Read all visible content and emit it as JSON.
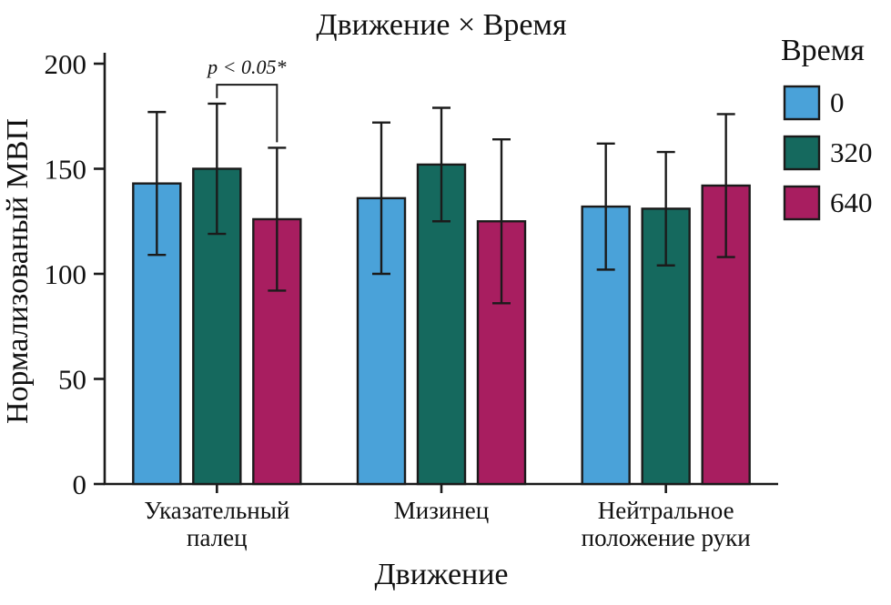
{
  "chart_data": {
    "type": "bar",
    "title": "Движение × Время",
    "xlabel": "Движение",
    "ylabel": "Нормализованый МВП",
    "ylim": [
      0,
      200
    ],
    "yticks": [
      0,
      50,
      100,
      150,
      200
    ],
    "grid": false,
    "legend_title": "Время",
    "legend_position": "right",
    "categories": [
      "Указательный палец",
      "Мизинец",
      "Нейтральное положение руки"
    ],
    "categories_display": [
      [
        "Указательный",
        "палец"
      ],
      [
        "Мизинец"
      ],
      [
        "Нейтральное",
        "положение руки"
      ]
    ],
    "series": [
      {
        "name": "0",
        "color": "#4aa2d9",
        "values": [
          143,
          136,
          132
        ],
        "errors": [
          34,
          36,
          30
        ]
      },
      {
        "name": "320",
        "color": "#15695e",
        "values": [
          150,
          152,
          131
        ],
        "errors": [
          31,
          27,
          27
        ]
      },
      {
        "name": "640",
        "color": "#a81e60",
        "values": [
          126,
          125,
          142
        ],
        "errors": [
          34,
          39,
          34
        ]
      }
    ],
    "annotation": {
      "text": "p < 0.05*",
      "category": "Указательный палец",
      "between_series": [
        "320",
        "640"
      ],
      "bracket_y": 190
    },
    "axis_color": "#1b1b1b"
  }
}
